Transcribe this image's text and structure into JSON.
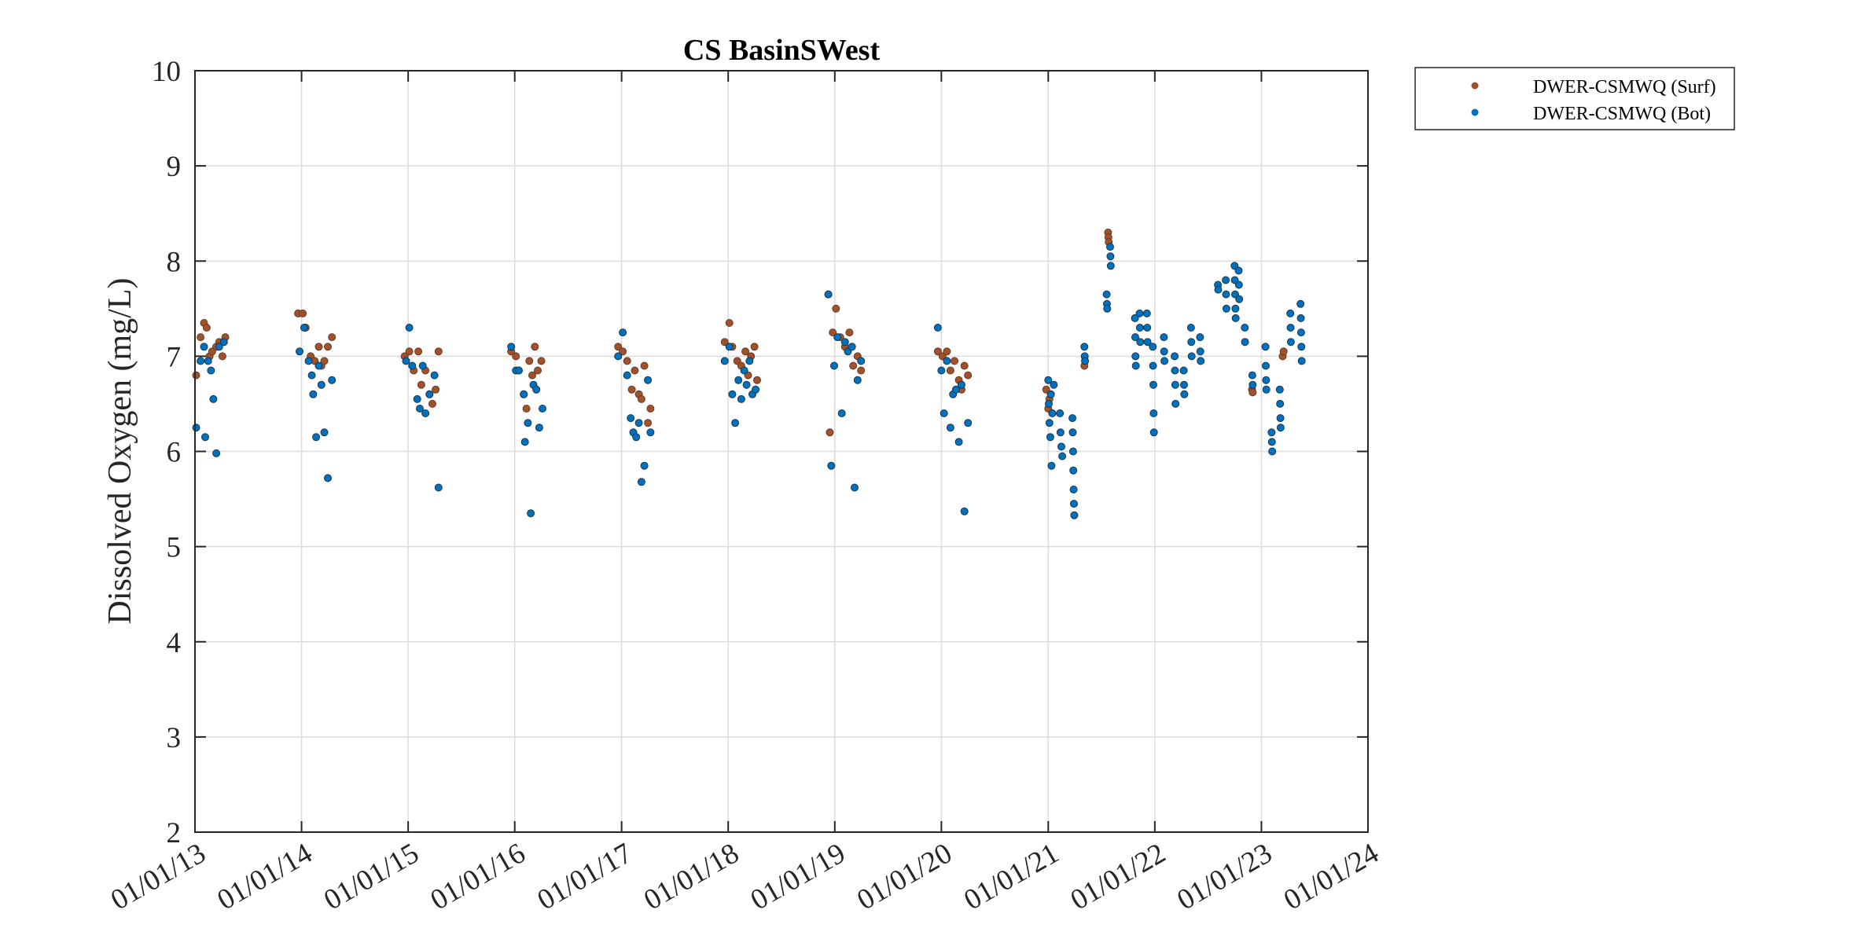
{
  "chart_data": {
    "type": "scatter",
    "title": "CS BasinSWest",
    "xlabel": "",
    "ylabel": "Dissolved Oxygen (mg/L)",
    "x_format": "dd/mm/yy",
    "xlim": [
      "2013-01-01",
      "2024-01-01"
    ],
    "ylim": [
      2,
      10
    ],
    "y_ticks": [
      2,
      3,
      4,
      5,
      6,
      7,
      8,
      9,
      10
    ],
    "x_tick_labels": [
      "01/01/13",
      "01/01/14",
      "01/01/15",
      "01/01/16",
      "01/01/17",
      "01/01/18",
      "01/01/19",
      "01/01/20",
      "01/01/21",
      "01/01/22",
      "01/01/23",
      "01/01/24"
    ],
    "grid": true,
    "legend_position": "outside top-right",
    "colors": {
      "surf": "#A0522D",
      "bot": "#0072BD"
    },
    "series": [
      {
        "name": "DWER-CSMWQ (Surf)",
        "points": [
          [
            "2013-01-05",
            6.8
          ],
          [
            "2013-01-20",
            7.2
          ],
          [
            "2013-02-01",
            7.35
          ],
          [
            "2013-02-10",
            7.3
          ],
          [
            "2013-02-20",
            7.0
          ],
          [
            "2013-03-01",
            7.05
          ],
          [
            "2013-03-15",
            7.1
          ],
          [
            "2013-03-25",
            7.15
          ],
          [
            "2013-04-05",
            7.0
          ],
          [
            "2013-04-15",
            7.2
          ],
          [
            "2013-12-20",
            7.45
          ],
          [
            "2014-01-05",
            7.45
          ],
          [
            "2014-01-15",
            7.3
          ],
          [
            "2014-02-01",
            7.0
          ],
          [
            "2014-02-15",
            6.95
          ],
          [
            "2014-03-01",
            7.1
          ],
          [
            "2014-03-10",
            6.9
          ],
          [
            "2014-03-20",
            6.95
          ],
          [
            "2014-04-01",
            7.1
          ],
          [
            "2014-04-15",
            7.2
          ],
          [
            "2014-12-20",
            7.0
          ],
          [
            "2015-01-05",
            7.05
          ],
          [
            "2015-01-20",
            6.85
          ],
          [
            "2015-02-05",
            7.05
          ],
          [
            "2015-02-15",
            6.7
          ],
          [
            "2015-03-01",
            6.85
          ],
          [
            "2015-03-15",
            6.6
          ],
          [
            "2015-03-25",
            6.5
          ],
          [
            "2015-04-05",
            6.65
          ],
          [
            "2015-04-15",
            7.05
          ],
          [
            "2015-12-20",
            7.05
          ],
          [
            "2016-01-05",
            7.0
          ],
          [
            "2016-01-15",
            6.85
          ],
          [
            "2016-02-01",
            6.6
          ],
          [
            "2016-02-10",
            6.45
          ],
          [
            "2016-02-20",
            6.95
          ],
          [
            "2016-03-01",
            6.8
          ],
          [
            "2016-03-10",
            7.1
          ],
          [
            "2016-03-20",
            6.85
          ],
          [
            "2016-04-01",
            6.95
          ],
          [
            "2016-12-20",
            7.1
          ],
          [
            "2017-01-05",
            7.05
          ],
          [
            "2017-01-20",
            6.95
          ],
          [
            "2017-02-05",
            6.65
          ],
          [
            "2017-02-15",
            6.85
          ],
          [
            "2017-03-01",
            6.6
          ],
          [
            "2017-03-10",
            6.55
          ],
          [
            "2017-03-20",
            6.9
          ],
          [
            "2017-04-01",
            6.3
          ],
          [
            "2017-04-10",
            6.45
          ],
          [
            "2017-12-20",
            7.15
          ],
          [
            "2018-01-05",
            7.35
          ],
          [
            "2018-01-15",
            7.1
          ],
          [
            "2018-02-01",
            6.95
          ],
          [
            "2018-02-15",
            6.9
          ],
          [
            "2018-03-01",
            7.05
          ],
          [
            "2018-03-10",
            6.8
          ],
          [
            "2018-03-20",
            7.0
          ],
          [
            "2018-04-01",
            7.1
          ],
          [
            "2018-04-10",
            6.75
          ],
          [
            "2018-12-10",
            7.65
          ],
          [
            "2018-12-15",
            6.2
          ],
          [
            "2018-12-25",
            7.25
          ],
          [
            "2019-01-05",
            7.5
          ],
          [
            "2019-01-20",
            7.2
          ],
          [
            "2019-02-05",
            7.1
          ],
          [
            "2019-02-20",
            7.25
          ],
          [
            "2019-03-05",
            6.9
          ],
          [
            "2019-03-20",
            7.0
          ],
          [
            "2019-04-01",
            6.85
          ],
          [
            "2019-12-20",
            7.05
          ],
          [
            "2020-01-05",
            7.0
          ],
          [
            "2020-01-20",
            7.05
          ],
          [
            "2020-02-01",
            6.85
          ],
          [
            "2020-02-15",
            6.95
          ],
          [
            "2020-03-01",
            6.75
          ],
          [
            "2020-03-10",
            6.65
          ],
          [
            "2020-03-20",
            6.9
          ],
          [
            "2020-04-01",
            6.8
          ],
          [
            "2020-12-25",
            6.65
          ],
          [
            "2021-01-01",
            6.45
          ],
          [
            "2021-01-05",
            6.55
          ],
          [
            "2021-01-10",
            6.6
          ],
          [
            "2021-05-05",
            6.9
          ],
          [
            "2021-07-25",
            8.3
          ],
          [
            "2021-07-26",
            8.25
          ],
          [
            "2021-07-27",
            8.2
          ],
          [
            "2022-11-30",
            6.65
          ],
          [
            "2022-12-02",
            6.62
          ],
          [
            "2023-03-15",
            7.0
          ],
          [
            "2023-03-18",
            7.05
          ]
        ]
      },
      {
        "name": "DWER-CSMWQ (Bot)",
        "points": [
          [
            "2013-01-05",
            6.25
          ],
          [
            "2013-01-20",
            6.95
          ],
          [
            "2013-02-01",
            7.1
          ],
          [
            "2013-02-05",
            6.15
          ],
          [
            "2013-02-15",
            6.95
          ],
          [
            "2013-02-25",
            6.85
          ],
          [
            "2013-03-05",
            6.55
          ],
          [
            "2013-03-15",
            5.98
          ],
          [
            "2013-03-25",
            7.1
          ],
          [
            "2013-04-10",
            7.15
          ],
          [
            "2013-12-25",
            7.05
          ],
          [
            "2014-01-10",
            7.3
          ],
          [
            "2014-01-25",
            6.95
          ],
          [
            "2014-02-05",
            6.8
          ],
          [
            "2014-02-10",
            6.6
          ],
          [
            "2014-02-20",
            6.15
          ],
          [
            "2014-03-01",
            6.9
          ],
          [
            "2014-03-10",
            6.7
          ],
          [
            "2014-03-20",
            6.2
          ],
          [
            "2014-04-01",
            5.72
          ],
          [
            "2014-04-15",
            6.75
          ],
          [
            "2014-12-25",
            6.95
          ],
          [
            "2015-01-05",
            7.3
          ],
          [
            "2015-01-15",
            6.9
          ],
          [
            "2015-02-01",
            6.55
          ],
          [
            "2015-02-10",
            6.45
          ],
          [
            "2015-02-20",
            6.9
          ],
          [
            "2015-03-01",
            6.4
          ],
          [
            "2015-03-15",
            6.6
          ],
          [
            "2015-04-01",
            6.8
          ],
          [
            "2015-04-15",
            5.62
          ],
          [
            "2015-12-20",
            7.1
          ],
          [
            "2016-01-05",
            6.85
          ],
          [
            "2016-01-15",
            6.85
          ],
          [
            "2016-02-01",
            6.6
          ],
          [
            "2016-02-05",
            6.1
          ],
          [
            "2016-02-15",
            6.3
          ],
          [
            "2016-02-25",
            5.35
          ],
          [
            "2016-03-05",
            6.7
          ],
          [
            "2016-03-15",
            6.65
          ],
          [
            "2016-03-25",
            6.25
          ],
          [
            "2016-04-05",
            6.45
          ],
          [
            "2016-12-20",
            7.0
          ],
          [
            "2017-01-05",
            7.25
          ],
          [
            "2017-01-20",
            6.8
          ],
          [
            "2017-02-01",
            6.35
          ],
          [
            "2017-02-10",
            6.2
          ],
          [
            "2017-02-20",
            6.15
          ],
          [
            "2017-03-01",
            6.3
          ],
          [
            "2017-03-10",
            5.68
          ],
          [
            "2017-03-20",
            5.85
          ],
          [
            "2017-04-01",
            6.75
          ],
          [
            "2017-04-10",
            6.2
          ],
          [
            "2017-12-20",
            6.95
          ],
          [
            "2018-01-05",
            7.1
          ],
          [
            "2018-01-15",
            6.6
          ],
          [
            "2018-01-25",
            6.3
          ],
          [
            "2018-02-05",
            6.75
          ],
          [
            "2018-02-15",
            6.55
          ],
          [
            "2018-02-25",
            6.85
          ],
          [
            "2018-03-05",
            6.7
          ],
          [
            "2018-03-15",
            6.95
          ],
          [
            "2018-03-25",
            6.6
          ],
          [
            "2018-04-05",
            6.65
          ],
          [
            "2018-12-10",
            7.65
          ],
          [
            "2018-12-20",
            5.85
          ],
          [
            "2018-12-30",
            6.9
          ],
          [
            "2019-01-10",
            7.2
          ],
          [
            "2019-01-25",
            6.4
          ],
          [
            "2019-02-05",
            7.15
          ],
          [
            "2019-02-15",
            7.05
          ],
          [
            "2019-03-01",
            7.1
          ],
          [
            "2019-03-10",
            5.62
          ],
          [
            "2019-03-20",
            6.75
          ],
          [
            "2019-04-01",
            6.95
          ],
          [
            "2019-12-20",
            7.3
          ],
          [
            "2020-01-01",
            6.85
          ],
          [
            "2020-01-10",
            6.4
          ],
          [
            "2020-01-20",
            6.95
          ],
          [
            "2020-02-01",
            6.25
          ],
          [
            "2020-02-10",
            6.6
          ],
          [
            "2020-02-20",
            6.65
          ],
          [
            "2020-03-01",
            6.1
          ],
          [
            "2020-03-10",
            6.7
          ],
          [
            "2020-03-20",
            5.37
          ],
          [
            "2020-04-01",
            6.3
          ],
          [
            "2021-01-01",
            6.75
          ],
          [
            "2021-01-03",
            6.5
          ],
          [
            "2021-01-05",
            6.3
          ],
          [
            "2021-01-08",
            6.15
          ],
          [
            "2021-01-10",
            6.6
          ],
          [
            "2021-01-12",
            5.85
          ],
          [
            "2021-01-15",
            6.4
          ],
          [
            "2021-01-20",
            6.7
          ],
          [
            "2021-02-10",
            6.4
          ],
          [
            "2021-02-12",
            6.2
          ],
          [
            "2021-02-15",
            6.05
          ],
          [
            "2021-02-18",
            5.95
          ],
          [
            "2021-03-25",
            6.35
          ],
          [
            "2021-03-26",
            6.2
          ],
          [
            "2021-03-27",
            6.0
          ],
          [
            "2021-03-28",
            5.8
          ],
          [
            "2021-03-29",
            5.6
          ],
          [
            "2021-03-30",
            5.45
          ],
          [
            "2021-03-31",
            5.33
          ],
          [
            "2021-05-05",
            7.1
          ],
          [
            "2021-05-06",
            7.0
          ],
          [
            "2021-05-07",
            6.95
          ],
          [
            "2021-07-20",
            7.65
          ],
          [
            "2021-07-21",
            7.55
          ],
          [
            "2021-07-22",
            7.5
          ],
          [
            "2021-08-01",
            8.15
          ],
          [
            "2021-08-02",
            8.05
          ],
          [
            "2021-08-03",
            7.95
          ],
          [
            "2021-10-25",
            7.4
          ],
          [
            "2021-10-26",
            7.2
          ],
          [
            "2021-10-27",
            7.0
          ],
          [
            "2021-10-28",
            6.9
          ],
          [
            "2021-11-10",
            7.45
          ],
          [
            "2021-11-11",
            7.3
          ],
          [
            "2021-11-12",
            7.15
          ],
          [
            "2021-12-05",
            7.45
          ],
          [
            "2021-12-06",
            7.3
          ],
          [
            "2021-12-07",
            7.15
          ],
          [
            "2021-12-25",
            7.1
          ],
          [
            "2021-12-26",
            6.9
          ],
          [
            "2021-12-27",
            6.7
          ],
          [
            "2021-12-28",
            6.4
          ],
          [
            "2021-12-29",
            6.2
          ],
          [
            "2022-02-01",
            7.2
          ],
          [
            "2022-02-02",
            7.05
          ],
          [
            "2022-02-03",
            6.95
          ],
          [
            "2022-03-10",
            7.0
          ],
          [
            "2022-03-11",
            6.85
          ],
          [
            "2022-03-12",
            6.7
          ],
          [
            "2022-03-13",
            6.5
          ],
          [
            "2022-04-10",
            6.85
          ],
          [
            "2022-04-11",
            6.7
          ],
          [
            "2022-04-12",
            6.6
          ],
          [
            "2022-05-05",
            7.3
          ],
          [
            "2022-05-06",
            7.15
          ],
          [
            "2022-05-07",
            7.0
          ],
          [
            "2022-06-05",
            7.2
          ],
          [
            "2022-06-06",
            7.05
          ],
          [
            "2022-06-07",
            6.95
          ],
          [
            "2022-08-05",
            7.75
          ],
          [
            "2022-08-06",
            7.7
          ],
          [
            "2022-09-01",
            7.8
          ],
          [
            "2022-09-02",
            7.65
          ],
          [
            "2022-09-03",
            7.5
          ],
          [
            "2022-10-01",
            7.95
          ],
          [
            "2022-10-02",
            7.8
          ],
          [
            "2022-10-03",
            7.65
          ],
          [
            "2022-10-04",
            7.5
          ],
          [
            "2022-10-05",
            7.4
          ],
          [
            "2022-10-15",
            7.9
          ],
          [
            "2022-10-16",
            7.75
          ],
          [
            "2022-10-17",
            7.6
          ],
          [
            "2022-11-05",
            7.3
          ],
          [
            "2022-11-06",
            7.15
          ],
          [
            "2022-12-01",
            6.8
          ],
          [
            "2022-12-02",
            6.7
          ],
          [
            "2023-01-15",
            7.1
          ],
          [
            "2023-01-16",
            6.9
          ],
          [
            "2023-01-17",
            6.75
          ],
          [
            "2023-01-18",
            6.65
          ],
          [
            "2023-02-05",
            6.2
          ],
          [
            "2023-02-06",
            6.1
          ],
          [
            "2023-02-07",
            6.0
          ],
          [
            "2023-03-05",
            6.65
          ],
          [
            "2023-03-06",
            6.5
          ],
          [
            "2023-03-07",
            6.35
          ],
          [
            "2023-03-08",
            6.25
          ],
          [
            "2023-04-10",
            7.45
          ],
          [
            "2023-04-11",
            7.3
          ],
          [
            "2023-04-12",
            7.15
          ],
          [
            "2023-05-15",
            7.55
          ],
          [
            "2023-05-16",
            7.4
          ],
          [
            "2023-05-17",
            7.25
          ],
          [
            "2023-05-18",
            7.1
          ],
          [
            "2023-05-19",
            6.95
          ]
        ]
      }
    ]
  }
}
